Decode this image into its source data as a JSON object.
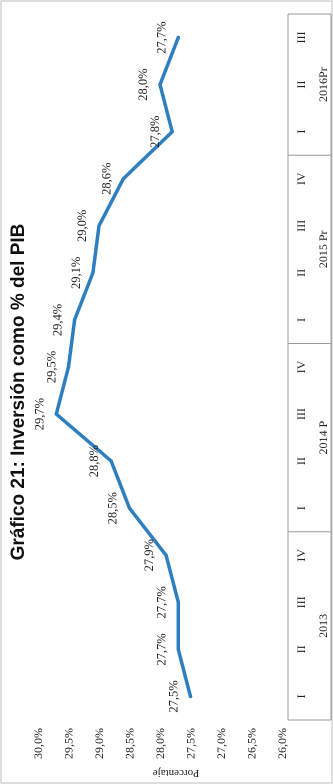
{
  "chart_data": {
    "type": "line",
    "title": "Gráfico 21: Inversión como % del PIB",
    "ylabel": "Porcentaje",
    "ylim": [
      26.0,
      30.0
    ],
    "y_ticks": [
      "26,0%",
      "26,5%",
      "27,0%",
      "27,5%",
      "28,0%",
      "28,5%",
      "29,0%",
      "29,5%",
      "30,0%"
    ],
    "years": [
      {
        "label": "2013",
        "quarters": [
          "I",
          "II",
          "III",
          "IV"
        ]
      },
      {
        "label": "2014 P",
        "quarters": [
          "I",
          "II",
          "III",
          "IV"
        ]
      },
      {
        "label": "2015 Pr",
        "quarters": [
          "I",
          "II",
          "III",
          "IV"
        ]
      },
      {
        "label": "2016Pr",
        "quarters": [
          "I",
          "II",
          "III"
        ]
      }
    ],
    "values": [
      27.5,
      27.7,
      27.7,
      27.9,
      28.5,
      28.8,
      29.7,
      29.5,
      29.4,
      29.1,
      29.0,
      28.6,
      27.8,
      28.0,
      27.7
    ],
    "data_labels": [
      "27,5%",
      "27,7%",
      "27,7%",
      "27,9%",
      "28,5%",
      "28,8%",
      "29,7%",
      "29,5%",
      "29,4%",
      "29,1%",
      "29,0%",
      "28,6%",
      "27,8%",
      "28,0%",
      "27,7%"
    ],
    "line_color": "#2e7fbf",
    "grid": false
  }
}
